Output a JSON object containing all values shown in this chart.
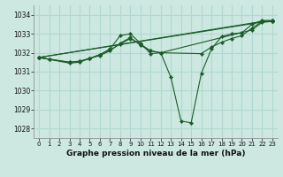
{
  "background_color": "#cce8e0",
  "plot_background": "#cce8e0",
  "grid_color": "#b0d8d0",
  "line_color": "#1a5c28",
  "title": "Graphe pression niveau de la mer (hPa)",
  "xlim": [
    -0.5,
    23.5
  ],
  "ylim": [
    1027.5,
    1034.5
  ],
  "yticks": [
    1028,
    1029,
    1030,
    1031,
    1032,
    1033,
    1034
  ],
  "xticks": [
    0,
    1,
    2,
    3,
    4,
    5,
    6,
    7,
    8,
    9,
    10,
    11,
    12,
    13,
    14,
    15,
    16,
    17,
    18,
    19,
    20,
    21,
    22,
    23
  ],
  "series": [
    {
      "x": [
        0,
        1,
        3,
        4,
        5,
        6,
        7,
        8,
        9,
        10,
        11,
        12,
        13,
        14,
        15,
        16,
        17,
        18,
        19,
        20,
        21,
        22,
        23
      ],
      "y": [
        1031.75,
        1031.65,
        1031.45,
        1031.5,
        1031.7,
        1031.9,
        1032.2,
        1032.9,
        1033.0,
        1032.5,
        1031.95,
        1032.0,
        1030.7,
        1028.4,
        1028.3,
        1030.9,
        1032.2,
        1032.85,
        1033.0,
        1033.05,
        1033.5,
        1033.7,
        1033.7
      ]
    },
    {
      "x": [
        0,
        23
      ],
      "y": [
        1031.75,
        1033.7
      ]
    },
    {
      "x": [
        0,
        22,
        23
      ],
      "y": [
        1031.75,
        1033.65,
        1033.65
      ]
    },
    {
      "x": [
        0,
        1,
        3,
        4,
        5,
        6,
        7,
        8,
        9,
        10,
        11,
        12,
        16,
        17,
        18,
        19,
        20,
        21,
        22,
        23
      ],
      "y": [
        1031.75,
        1031.65,
        1031.5,
        1031.55,
        1031.7,
        1031.85,
        1032.1,
        1032.5,
        1032.8,
        1032.4,
        1032.1,
        1032.0,
        1031.95,
        1032.3,
        1032.55,
        1032.75,
        1032.9,
        1033.3,
        1033.65,
        1033.65
      ]
    },
    {
      "x": [
        0,
        3,
        4,
        5,
        6,
        7,
        8,
        9,
        10,
        11,
        12,
        21,
        22,
        23
      ],
      "y": [
        1031.75,
        1031.5,
        1031.55,
        1031.7,
        1031.9,
        1032.15,
        1032.45,
        1032.75,
        1032.45,
        1032.1,
        1032.0,
        1033.2,
        1033.6,
        1033.65
      ]
    }
  ]
}
